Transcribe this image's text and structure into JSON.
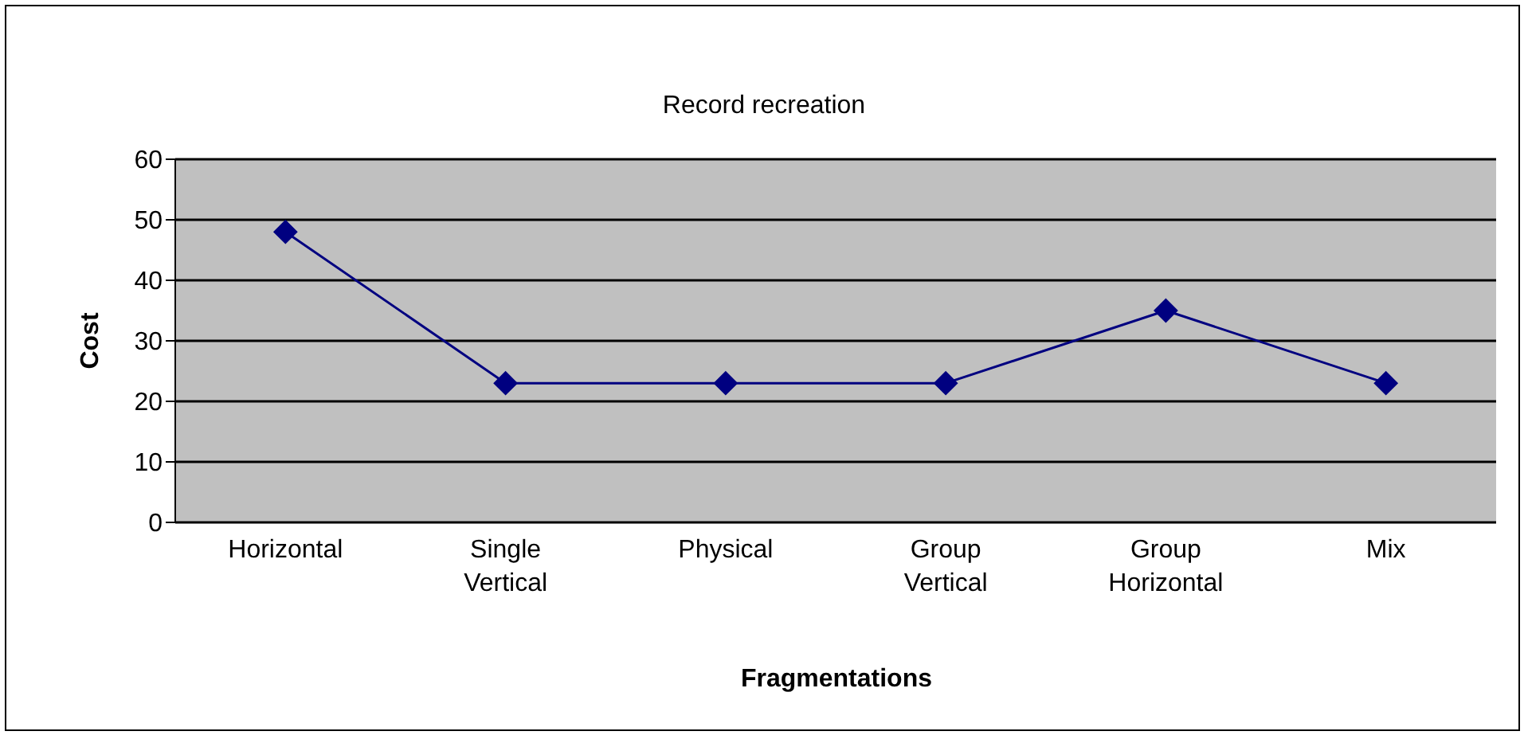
{
  "chart_data": {
    "type": "line",
    "title": "Record recreation",
    "xlabel": "Fragmentations",
    "ylabel": "Cost",
    "categories": [
      "Horizontal",
      "Single Vertical",
      "Physical",
      "Group Vertical",
      "Group Horizontal",
      "Mix"
    ],
    "series": [
      {
        "color": "#000080",
        "values": [
          48,
          23,
          23,
          23,
          35,
          23
        ]
      }
    ],
    "ylim": [
      0,
      60
    ],
    "yticks": [
      0,
      10,
      20,
      30,
      40,
      50,
      60
    ],
    "grid": "y",
    "marker": "diamond",
    "line_style": "solid",
    "legend": false
  }
}
